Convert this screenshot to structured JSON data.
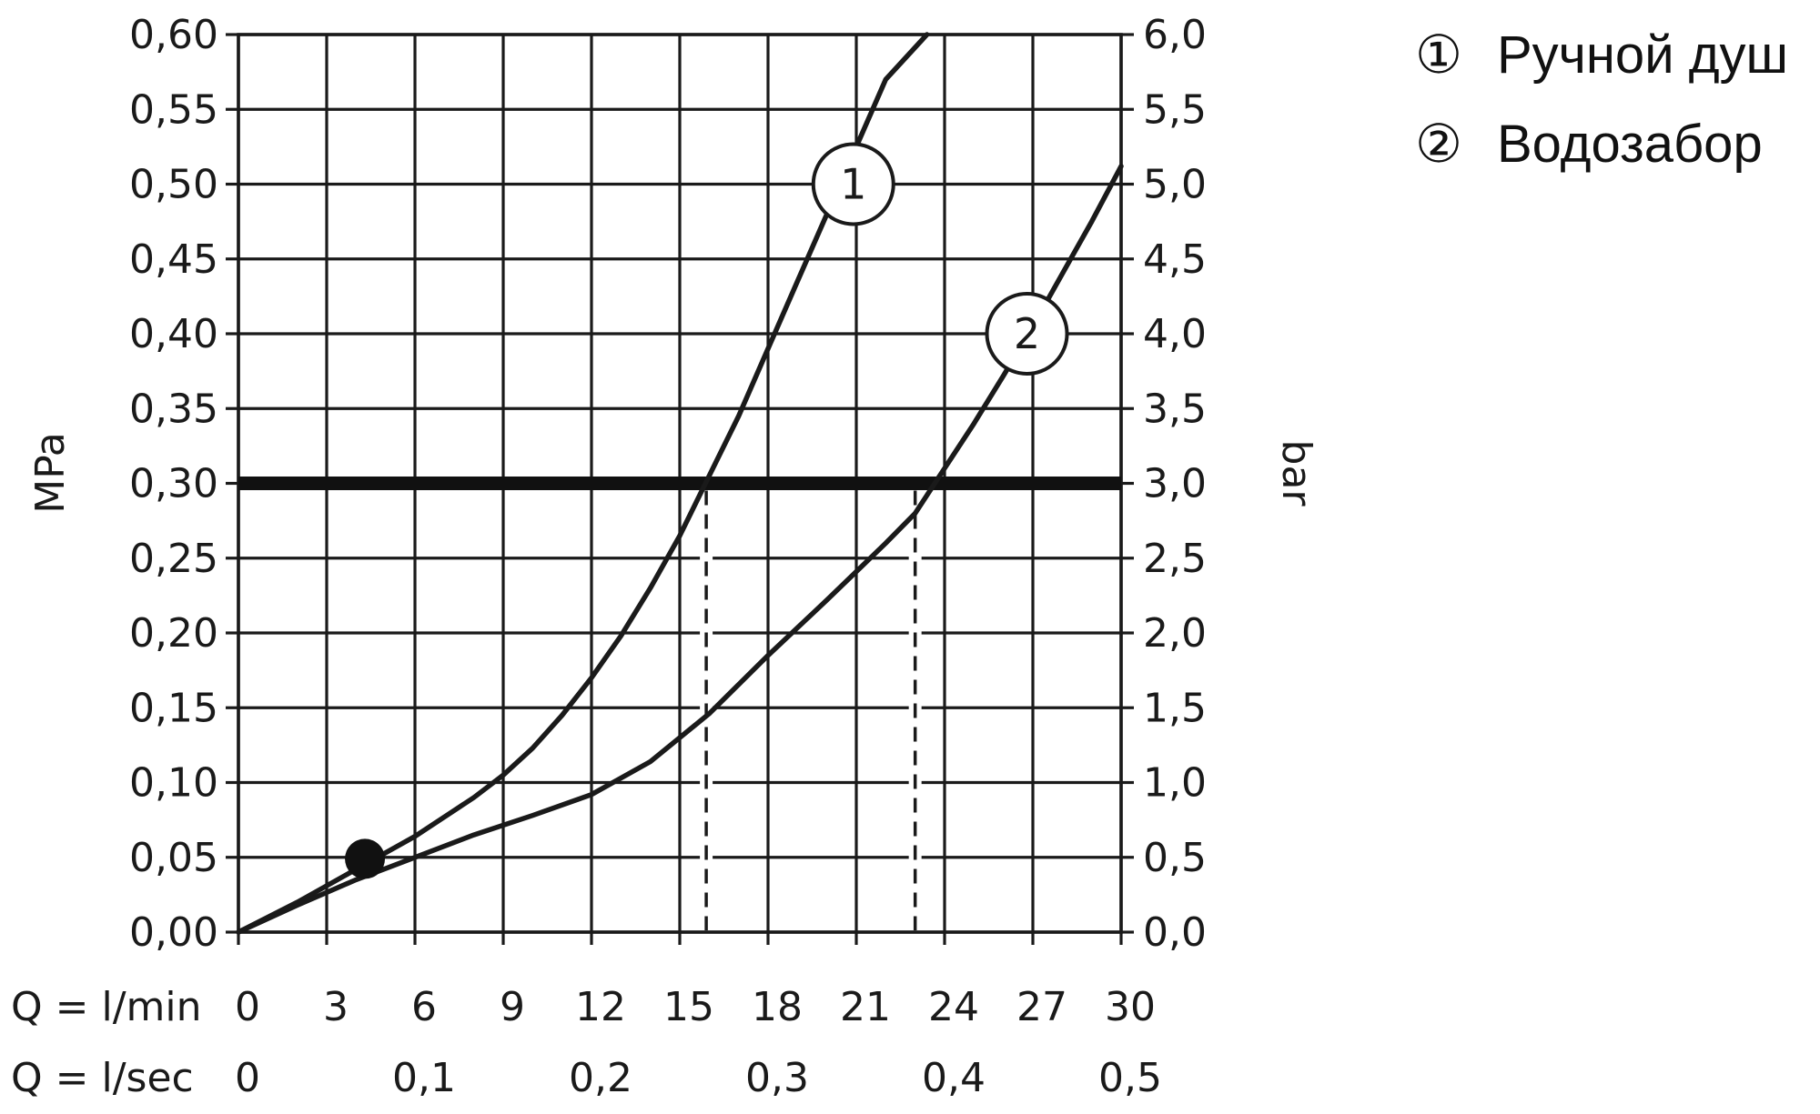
{
  "chart_data": {
    "type": "line",
    "title": "",
    "left_axis": {
      "label": "MPa",
      "range": [
        0,
        0.6
      ],
      "ticks": [
        "0,00",
        "0,05",
        "0,10",
        "0,15",
        "0,20",
        "0,25",
        "0,30",
        "0,35",
        "0,40",
        "0,45",
        "0,50",
        "0,55",
        "0,60"
      ]
    },
    "right_axis": {
      "label": "bar",
      "range": [
        0,
        6
      ],
      "ticks": [
        "0,0",
        "0,5",
        "1,0",
        "1,5",
        "2,0",
        "2,5",
        "3,0",
        "3,5",
        "4,0",
        "4,5",
        "5,0",
        "5,5",
        "6,0"
      ]
    },
    "x_axis": {
      "range": [
        0,
        30
      ],
      "row1_label": "Q = l/min",
      "row1_ticks": [
        {
          "value": 0,
          "label": "0"
        },
        {
          "value": 3,
          "label": "3"
        },
        {
          "value": 6,
          "label": "6"
        },
        {
          "value": 9,
          "label": "9"
        },
        {
          "value": 12,
          "label": "12"
        },
        {
          "value": 15,
          "label": "15"
        },
        {
          "value": 18,
          "label": "18"
        },
        {
          "value": 21,
          "label": "21"
        },
        {
          "value": 24,
          "label": "24"
        },
        {
          "value": 27,
          "label": "27"
        },
        {
          "value": 30,
          "label": "30"
        }
      ],
      "row2_label": "Q = l/sec",
      "row2_ticks": [
        {
          "value": 0,
          "label": "0"
        },
        {
          "value": 6,
          "label": "0,1"
        },
        {
          "value": 12,
          "label": "0,2"
        },
        {
          "value": 18,
          "label": "0,3"
        },
        {
          "value": 24,
          "label": "0,4"
        },
        {
          "value": 30,
          "label": "0,5"
        }
      ]
    },
    "grid": true,
    "reference_line": {
      "y": 0.3
    },
    "series": [
      {
        "name": "Ручной душ",
        "marker": "1",
        "marker_at": {
          "x": 20.9,
          "y": 0.5
        },
        "points": [
          [
            0,
            0
          ],
          [
            2,
            0.02
          ],
          [
            4,
            0.042
          ],
          [
            6,
            0.064
          ],
          [
            8,
            0.09
          ],
          [
            9,
            0.105
          ],
          [
            10,
            0.123
          ],
          [
            11,
            0.145
          ],
          [
            12,
            0.17
          ],
          [
            13,
            0.198
          ],
          [
            14,
            0.23
          ],
          [
            15,
            0.265
          ],
          [
            16,
            0.305
          ],
          [
            17,
            0.345
          ],
          [
            18,
            0.39
          ],
          [
            19,
            0.435
          ],
          [
            20,
            0.48
          ],
          [
            21,
            0.525
          ],
          [
            22,
            0.57
          ],
          [
            23.4,
            0.6
          ]
        ]
      },
      {
        "name": "Водозабор",
        "marker": "2",
        "marker_at": {
          "x": 26.8,
          "y": 0.4
        },
        "points": [
          [
            0,
            0
          ],
          [
            2,
            0.018
          ],
          [
            4,
            0.035
          ],
          [
            6,
            0.05
          ],
          [
            8,
            0.065
          ],
          [
            10,
            0.078
          ],
          [
            12,
            0.092
          ],
          [
            14,
            0.114
          ],
          [
            16,
            0.146
          ],
          [
            18,
            0.185
          ],
          [
            20,
            0.222
          ],
          [
            22,
            0.26
          ],
          [
            23,
            0.28
          ],
          [
            24,
            0.31
          ],
          [
            25,
            0.34
          ],
          [
            26,
            0.372
          ],
          [
            27,
            0.405
          ],
          [
            28,
            0.44
          ],
          [
            29,
            0.475
          ],
          [
            30,
            0.512
          ]
        ]
      }
    ],
    "drop_lines": [
      {
        "x": 15.9,
        "from_y": 0.3
      },
      {
        "x": 23.0,
        "from_y": 0.3
      }
    ],
    "highlight_point": {
      "x": 4.3,
      "y": 0.049
    }
  },
  "legend": [
    {
      "symbol": "①",
      "label": "Ручной душ"
    },
    {
      "symbol": "②",
      "label": "Водозабор"
    }
  ]
}
